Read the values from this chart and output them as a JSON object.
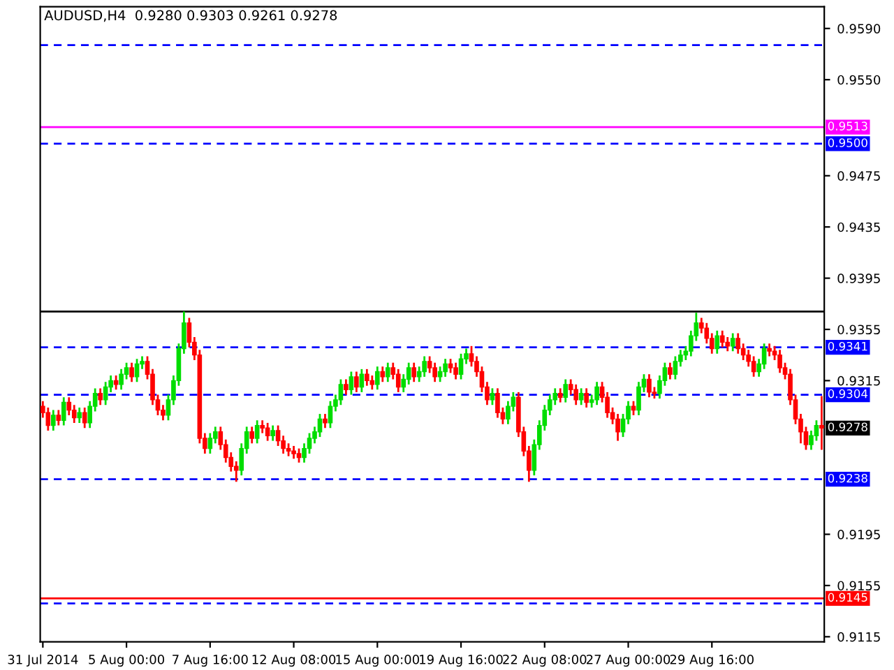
{
  "chart_data": {
    "type": "candlestick",
    "title": "AUDUSD,H4  0.9280 0.9303 0.9261 0.9278",
    "categories": [
      "31 Jul 2014",
      null,
      null,
      null,
      null,
      null,
      null,
      null,
      null,
      null,
      null,
      null,
      null,
      null,
      null,
      null,
      "5 Aug 00:00",
      null,
      null,
      null,
      null,
      null,
      null,
      null,
      null,
      null,
      null,
      null,
      null,
      null,
      null,
      null,
      "7 Aug 16:00",
      null,
      null,
      null,
      null,
      null,
      null,
      null,
      null,
      null,
      null,
      null,
      null,
      null,
      null,
      null,
      "12 Aug 08:00",
      null,
      null,
      null,
      null,
      null,
      null,
      null,
      null,
      null,
      null,
      null,
      null,
      null,
      null,
      null,
      "15 Aug 00:00",
      null,
      null,
      null,
      null,
      null,
      null,
      null,
      null,
      null,
      null,
      null,
      null,
      null,
      null,
      null,
      "19 Aug 16:00",
      null,
      null,
      null,
      null,
      null,
      null,
      null,
      null,
      null,
      null,
      null,
      null,
      null,
      null,
      null,
      "22 Aug 08:00",
      null,
      null,
      null,
      null,
      null,
      null,
      null,
      null,
      null,
      null,
      null,
      null,
      null,
      null,
      null,
      "27 Aug 00:00",
      null,
      null,
      null,
      null,
      null,
      null,
      null,
      null,
      null,
      null,
      null,
      null,
      null,
      null,
      null,
      "29 Aug 16:00",
      null,
      null,
      null,
      null,
      null,
      null,
      null,
      null,
      null,
      null,
      null,
      null,
      null,
      null,
      null,
      null,
      null,
      null,
      null,
      null,
      null
    ],
    "ohlc": [
      [
        0.9295,
        0.9299,
        0.9286,
        0.929
      ],
      [
        0.929,
        0.9294,
        0.9276,
        0.928
      ],
      [
        0.928,
        0.9292,
        0.9276,
        0.9288
      ],
      [
        0.9288,
        0.9292,
        0.928,
        0.9284
      ],
      [
        0.9284,
        0.9302,
        0.928,
        0.9298
      ],
      [
        0.9298,
        0.9302,
        0.9288,
        0.9292
      ],
      [
        0.9292,
        0.9296,
        0.9282,
        0.9286
      ],
      [
        0.9286,
        0.9294,
        0.9282,
        0.929
      ],
      [
        0.929,
        0.9294,
        0.9278,
        0.9282
      ],
      [
        0.9282,
        0.9299,
        0.9278,
        0.9295
      ],
      [
        0.9295,
        0.9309,
        0.9291,
        0.9305
      ],
      [
        0.9305,
        0.9309,
        0.9296,
        0.93
      ],
      [
        0.93,
        0.9314,
        0.9296,
        0.931
      ],
      [
        0.931,
        0.9319,
        0.9306,
        0.9315
      ],
      [
        0.9315,
        0.9319,
        0.9308,
        0.9312
      ],
      [
        0.9312,
        0.9324,
        0.9308,
        0.932
      ],
      [
        0.932,
        0.9329,
        0.9316,
        0.9325
      ],
      [
        0.9325,
        0.9329,
        0.9314,
        0.9318
      ],
      [
        0.9318,
        0.9332,
        0.9314,
        0.9328
      ],
      [
        0.9328,
        0.9334,
        0.9324,
        0.933
      ],
      [
        0.933,
        0.9334,
        0.9316,
        0.932
      ],
      [
        0.932,
        0.9324,
        0.9296,
        0.93
      ],
      [
        0.93,
        0.9304,
        0.9288,
        0.9292
      ],
      [
        0.9292,
        0.9296,
        0.9284,
        0.9288
      ],
      [
        0.9288,
        0.9304,
        0.9284,
        0.93
      ],
      [
        0.93,
        0.9319,
        0.9296,
        0.9315
      ],
      [
        0.9315,
        0.9344,
        0.9311,
        0.934
      ],
      [
        0.934,
        0.9369,
        0.9336,
        0.936
      ],
      [
        0.936,
        0.9364,
        0.9341,
        0.9345
      ],
      [
        0.9345,
        0.9349,
        0.9331,
        0.9335
      ],
      [
        0.9335,
        0.9339,
        0.9266,
        0.927
      ],
      [
        0.927,
        0.9274,
        0.9258,
        0.9262
      ],
      [
        0.9262,
        0.9274,
        0.9258,
        0.927
      ],
      [
        0.927,
        0.9279,
        0.9266,
        0.9275
      ],
      [
        0.9275,
        0.9279,
        0.9261,
        0.9265
      ],
      [
        0.9265,
        0.9269,
        0.9251,
        0.9255
      ],
      [
        0.9255,
        0.9259,
        0.9244,
        0.9248
      ],
      [
        0.9248,
        0.9252,
        0.9236,
        0.9245
      ],
      [
        0.9245,
        0.9266,
        0.9241,
        0.9262
      ],
      [
        0.9262,
        0.9279,
        0.9258,
        0.9275
      ],
      [
        0.9275,
        0.9279,
        0.9266,
        0.927
      ],
      [
        0.927,
        0.9284,
        0.9266,
        0.928
      ],
      [
        0.928,
        0.9284,
        0.9274,
        0.9278
      ],
      [
        0.9278,
        0.9282,
        0.9268,
        0.9272
      ],
      [
        0.9272,
        0.928,
        0.9268,
        0.9276
      ],
      [
        0.9276,
        0.928,
        0.9264,
        0.9268
      ],
      [
        0.9268,
        0.9272,
        0.9258,
        0.9262
      ],
      [
        0.9262,
        0.9266,
        0.9256,
        0.926
      ],
      [
        0.926,
        0.9264,
        0.9254,
        0.9258
      ],
      [
        0.9258,
        0.9262,
        0.9251,
        0.9255
      ],
      [
        0.9255,
        0.9266,
        0.9251,
        0.9262
      ],
      [
        0.9262,
        0.9274,
        0.9258,
        0.927
      ],
      [
        0.927,
        0.9279,
        0.9266,
        0.9275
      ],
      [
        0.9275,
        0.9289,
        0.9271,
        0.9285
      ],
      [
        0.9285,
        0.9289,
        0.9278,
        0.9282
      ],
      [
        0.9282,
        0.9299,
        0.9278,
        0.9295
      ],
      [
        0.9295,
        0.9304,
        0.9291,
        0.93
      ],
      [
        0.93,
        0.9316,
        0.9296,
        0.9312
      ],
      [
        0.9312,
        0.9316,
        0.9304,
        0.9308
      ],
      [
        0.9308,
        0.9322,
        0.9304,
        0.9318
      ],
      [
        0.9318,
        0.9322,
        0.9306,
        0.931
      ],
      [
        0.931,
        0.9324,
        0.9306,
        0.932
      ],
      [
        0.932,
        0.9324,
        0.9311,
        0.9315
      ],
      [
        0.9315,
        0.9319,
        0.9308,
        0.9312
      ],
      [
        0.9312,
        0.9326,
        0.9308,
        0.9322
      ],
      [
        0.9322,
        0.9326,
        0.9314,
        0.9318
      ],
      [
        0.9318,
        0.9329,
        0.9314,
        0.9325
      ],
      [
        0.9325,
        0.9329,
        0.9316,
        0.932
      ],
      [
        0.932,
        0.9324,
        0.9306,
        0.931
      ],
      [
        0.931,
        0.932,
        0.9306,
        0.9316
      ],
      [
        0.9316,
        0.9329,
        0.9312,
        0.9325
      ],
      [
        0.9325,
        0.9329,
        0.9314,
        0.9318
      ],
      [
        0.9318,
        0.9326,
        0.9314,
        0.9322
      ],
      [
        0.9322,
        0.9334,
        0.9318,
        0.933
      ],
      [
        0.933,
        0.9334,
        0.9321,
        0.9325
      ],
      [
        0.9325,
        0.9329,
        0.9314,
        0.9318
      ],
      [
        0.9318,
        0.9326,
        0.9314,
        0.9322
      ],
      [
        0.9322,
        0.9332,
        0.9318,
        0.9328
      ],
      [
        0.9328,
        0.9332,
        0.9321,
        0.9325
      ],
      [
        0.9325,
        0.9329,
        0.9316,
        0.932
      ],
      [
        0.932,
        0.9336,
        0.9316,
        0.9332
      ],
      [
        0.9332,
        0.934,
        0.9328,
        0.9336
      ],
      [
        0.9336,
        0.9342,
        0.9326,
        0.933
      ],
      [
        0.933,
        0.9334,
        0.9318,
        0.9322
      ],
      [
        0.9322,
        0.9326,
        0.9306,
        0.931
      ],
      [
        0.931,
        0.9314,
        0.9296,
        0.93
      ],
      [
        0.93,
        0.9309,
        0.9296,
        0.9305
      ],
      [
        0.9305,
        0.9309,
        0.9286,
        0.929
      ],
      [
        0.929,
        0.9294,
        0.9281,
        0.9285
      ],
      [
        0.9285,
        0.9299,
        0.9281,
        0.9295
      ],
      [
        0.9295,
        0.9306,
        0.9291,
        0.9302
      ],
      [
        0.9302,
        0.9306,
        0.9271,
        0.9275
      ],
      [
        0.9275,
        0.9279,
        0.9256,
        0.926
      ],
      [
        0.926,
        0.9264,
        0.9236,
        0.9245
      ],
      [
        0.9245,
        0.9269,
        0.9241,
        0.9265
      ],
      [
        0.9265,
        0.9284,
        0.9261,
        0.928
      ],
      [
        0.928,
        0.9296,
        0.9276,
        0.9292
      ],
      [
        0.9292,
        0.9304,
        0.9288,
        0.93
      ],
      [
        0.93,
        0.9309,
        0.9296,
        0.9305
      ],
      [
        0.9305,
        0.9309,
        0.9298,
        0.9302
      ],
      [
        0.9302,
        0.9316,
        0.9298,
        0.9312
      ],
      [
        0.9312,
        0.9316,
        0.9304,
        0.9308
      ],
      [
        0.9308,
        0.9312,
        0.9296,
        0.93
      ],
      [
        0.93,
        0.9309,
        0.9296,
        0.9305
      ],
      [
        0.9305,
        0.9309,
        0.9294,
        0.9298
      ],
      [
        0.9298,
        0.9304,
        0.9294,
        0.93
      ],
      [
        0.93,
        0.9314,
        0.9296,
        0.931
      ],
      [
        0.931,
        0.9314,
        0.9298,
        0.9302
      ],
      [
        0.9302,
        0.9306,
        0.9286,
        0.929
      ],
      [
        0.929,
        0.9294,
        0.9281,
        0.9285
      ],
      [
        0.9285,
        0.9289,
        0.9268,
        0.9275
      ],
      [
        0.9275,
        0.9289,
        0.9271,
        0.9285
      ],
      [
        0.9285,
        0.9299,
        0.9281,
        0.9295
      ],
      [
        0.9295,
        0.9299,
        0.9288,
        0.9292
      ],
      [
        0.9292,
        0.9314,
        0.9288,
        0.931
      ],
      [
        0.931,
        0.932,
        0.9306,
        0.9316
      ],
      [
        0.9316,
        0.932,
        0.9302,
        0.9306
      ],
      [
        0.9306,
        0.931,
        0.9301,
        0.9305
      ],
      [
        0.9305,
        0.9319,
        0.9301,
        0.9315
      ],
      [
        0.9315,
        0.9329,
        0.9311,
        0.9325
      ],
      [
        0.9325,
        0.9329,
        0.9316,
        0.932
      ],
      [
        0.932,
        0.9334,
        0.9316,
        0.933
      ],
      [
        0.933,
        0.9339,
        0.9326,
        0.9335
      ],
      [
        0.9335,
        0.9342,
        0.9331,
        0.9338
      ],
      [
        0.9338,
        0.9354,
        0.9334,
        0.935
      ],
      [
        0.935,
        0.9368,
        0.9346,
        0.936
      ],
      [
        0.936,
        0.9364,
        0.9352,
        0.9356
      ],
      [
        0.9356,
        0.936,
        0.9344,
        0.9348
      ],
      [
        0.9348,
        0.9352,
        0.9336,
        0.934
      ],
      [
        0.934,
        0.9354,
        0.9336,
        0.935
      ],
      [
        0.935,
        0.9354,
        0.9341,
        0.9345
      ],
      [
        0.9345,
        0.9349,
        0.9338,
        0.9342
      ],
      [
        0.9342,
        0.9352,
        0.9338,
        0.9348
      ],
      [
        0.9348,
        0.9352,
        0.9336,
        0.934
      ],
      [
        0.934,
        0.9344,
        0.9331,
        0.9335
      ],
      [
        0.9335,
        0.9339,
        0.9326,
        0.933
      ],
      [
        0.933,
        0.9334,
        0.9318,
        0.9322
      ],
      [
        0.9322,
        0.9332,
        0.9318,
        0.9328
      ],
      [
        0.9328,
        0.9344,
        0.9324,
        0.934
      ],
      [
        0.934,
        0.9344,
        0.9334,
        0.9338
      ],
      [
        0.9338,
        0.9342,
        0.9331,
        0.9335
      ],
      [
        0.9335,
        0.9339,
        0.9321,
        0.9325
      ],
      [
        0.9325,
        0.9329,
        0.9316,
        0.932
      ],
      [
        0.932,
        0.9324,
        0.9296,
        0.93
      ],
      [
        0.93,
        0.9304,
        0.9281,
        0.9285
      ],
      [
        0.9285,
        0.9289,
        0.9266,
        0.9275
      ],
      [
        0.9275,
        0.9279,
        0.9261,
        0.9265
      ],
      [
        0.9265,
        0.9276,
        0.9261,
        0.9272
      ],
      [
        0.9272,
        0.9284,
        0.9268,
        0.928
      ],
      [
        0.928,
        0.9303,
        0.9261,
        0.9278
      ]
    ],
    "colors": [
      "#ff0000",
      "#ff0000",
      "#00dd00",
      "#ff0000",
      "#00dd00",
      "#ff0000",
      "#ff0000",
      "#00dd00",
      "#ff0000",
      "#00dd00",
      "#00dd00",
      "#ff0000",
      "#00dd00",
      "#00dd00",
      "#ff0000",
      "#00dd00",
      "#00dd00",
      "#ff0000",
      "#00dd00",
      "#00dd00",
      "#ff0000",
      "#ff0000",
      "#ff0000",
      "#ff0000",
      "#00dd00",
      "#00dd00",
      "#00dd00",
      "#00dd00",
      "#ff0000",
      "#ff0000",
      "#ff0000",
      "#ff0000",
      "#00dd00",
      "#00dd00",
      "#ff0000",
      "#ff0000",
      "#ff0000",
      "#ff0000",
      "#00dd00",
      "#00dd00",
      "#ff0000",
      "#00dd00",
      "#ff0000",
      "#ff0000",
      "#00dd00",
      "#ff0000",
      "#ff0000",
      "#ff0000",
      "#ff0000",
      "#ff0000",
      "#00dd00",
      "#00dd00",
      "#00dd00",
      "#00dd00",
      "#ff0000",
      "#00dd00",
      "#00dd00",
      "#00dd00",
      "#ff0000",
      "#00dd00",
      "#ff0000",
      "#00dd00",
      "#ff0000",
      "#ff0000",
      "#00dd00",
      "#ff0000",
      "#00dd00",
      "#ff0000",
      "#ff0000",
      "#00dd00",
      "#00dd00",
      "#ff0000",
      "#00dd00",
      "#00dd00",
      "#ff0000",
      "#ff0000",
      "#00dd00",
      "#00dd00",
      "#ff0000",
      "#ff0000",
      "#00dd00",
      "#00dd00",
      "#ff0000",
      "#ff0000",
      "#ff0000",
      "#ff0000",
      "#00dd00",
      "#ff0000",
      "#ff0000",
      "#00dd00",
      "#00dd00",
      "#ff0000",
      "#ff0000",
      "#ff0000",
      "#00dd00",
      "#00dd00",
      "#00dd00",
      "#00dd00",
      "#00dd00",
      "#ff0000",
      "#00dd00",
      "#ff0000",
      "#ff0000",
      "#00dd00",
      "#ff0000",
      "#00dd00",
      "#00dd00",
      "#ff0000",
      "#ff0000",
      "#ff0000",
      "#ff0000",
      "#00dd00",
      "#00dd00",
      "#ff0000",
      "#00dd00",
      "#00dd00",
      "#ff0000",
      "#ff0000",
      "#00dd00",
      "#00dd00",
      "#ff0000",
      "#00dd00",
      "#00dd00",
      "#00dd00",
      "#00dd00",
      "#00dd00",
      "#ff0000",
      "#ff0000",
      "#ff0000",
      "#00dd00",
      "#ff0000",
      "#ff0000",
      "#00dd00",
      "#ff0000",
      "#ff0000",
      "#ff0000",
      "#ff0000",
      "#00dd00",
      "#00dd00",
      "#ff0000",
      "#ff0000",
      "#ff0000",
      "#ff0000",
      "#ff0000",
      "#ff0000",
      "#ff0000",
      "#ff0000",
      "#00dd00",
      "#00dd00",
      "#ff0000"
    ],
    "ylim": [
      0.9111,
      0.9607
    ],
    "yticks": [
      0.9115,
      0.9155,
      0.9195,
      0.9315,
      0.9355,
      0.9395,
      0.9435,
      0.9475,
      {
        "value": 0.955,
        "label": "0.9550"
      },
      {
        "value": 0.959,
        "label": "0.9590"
      }
    ],
    "ref_lines": [
      {
        "axis": "y",
        "value": 0.9577,
        "color": "#0000ff",
        "line_style": "dashed"
      },
      {
        "axis": "y",
        "value": 0.9513,
        "label": "0.9513",
        "color": "#ff00ff",
        "line_style": "solid"
      },
      {
        "axis": "y",
        "value": 0.95,
        "label": "0.9500",
        "color": "#0000ff",
        "line_style": "dashed"
      },
      {
        "axis": "y",
        "value": 0.9369,
        "color": "#000000",
        "line_style": "solid"
      },
      {
        "axis": "y",
        "value": 0.9341,
        "label": "0.9341",
        "color": "#0000ff",
        "line_style": "dashed"
      },
      {
        "axis": "y",
        "value": 0.9304,
        "label": "0.9304",
        "color": "#0000ff",
        "line_style": "dashed"
      },
      {
        "axis": "y",
        "value": 0.9238,
        "label": "0.9238",
        "color": "#0000ff",
        "line_style": "dashed"
      },
      {
        "axis": "y",
        "value": 0.9145,
        "label": "0.9145",
        "color": "#ff0000",
        "line_style": "solid"
      },
      {
        "axis": "y",
        "value": 0.9141,
        "color": "#0000ff",
        "line_style": "dashed"
      }
    ],
    "annotations": [
      {
        "text": "0.9278",
        "y": 0.9278
      }
    ],
    "grid": false
  }
}
